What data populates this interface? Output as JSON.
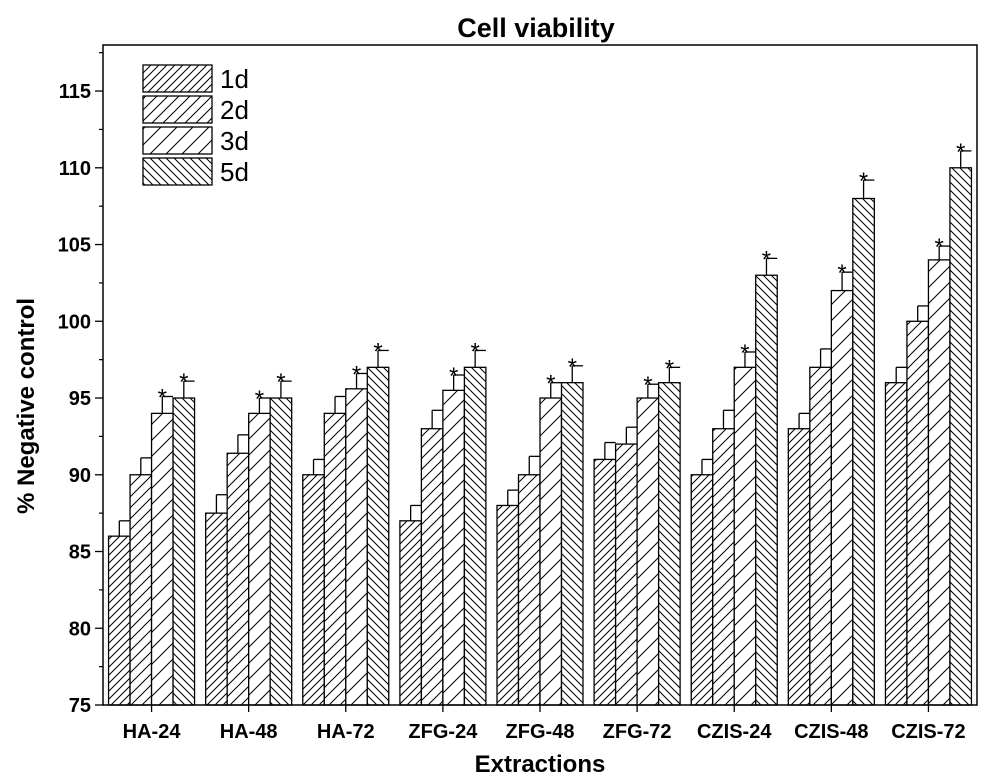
{
  "chart_data": {
    "type": "bar",
    "title": "Cell viability",
    "xlabel": "Extractions",
    "ylabel": "% Negative control",
    "ylim": [
      75,
      118
    ],
    "yticks": [
      75,
      80,
      85,
      90,
      95,
      100,
      105,
      110,
      115
    ],
    "categories": [
      "HA-24",
      "HA-48",
      "HA-72",
      "ZFG-24",
      "ZFG-48",
      "ZFG-72",
      "CZIS-24",
      "CZIS-48",
      "CZIS-72"
    ],
    "series": [
      {
        "name": "1d",
        "values": [
          86,
          87.5,
          90,
          87,
          88,
          91,
          90,
          93,
          96
        ],
        "errors": [
          1,
          1.2,
          1,
          1,
          1,
          1.1,
          1,
          1,
          1
        ],
        "significant": [
          false,
          false,
          false,
          false,
          false,
          false,
          false,
          false,
          false
        ]
      },
      {
        "name": "2d",
        "values": [
          90,
          91.4,
          94,
          93,
          90,
          92,
          93,
          97,
          100
        ],
        "errors": [
          1.1,
          1.2,
          1.1,
          1.2,
          1.2,
          1.1,
          1.2,
          1.2,
          1
        ],
        "significant": [
          false,
          false,
          false,
          false,
          false,
          false,
          false,
          false,
          false
        ]
      },
      {
        "name": "3d",
        "values": [
          94,
          94,
          95.6,
          95.5,
          95,
          95,
          97,
          102,
          104
        ],
        "errors": [
          1.1,
          1,
          1,
          1,
          1,
          0.9,
          1,
          1.2,
          0.9
        ],
        "significant": [
          true,
          true,
          true,
          true,
          true,
          true,
          true,
          true,
          true
        ]
      },
      {
        "name": "5d",
        "values": [
          95,
          95,
          97,
          97,
          96,
          96,
          103,
          108,
          110
        ],
        "errors": [
          1.1,
          1.1,
          1.1,
          1.1,
          1.1,
          1,
          1.1,
          1.2,
          1.1
        ],
        "significant": [
          true,
          true,
          true,
          true,
          true,
          true,
          true,
          true,
          true
        ]
      }
    ],
    "significance_marker": "*",
    "legend_position": "top-left",
    "grid": false
  }
}
